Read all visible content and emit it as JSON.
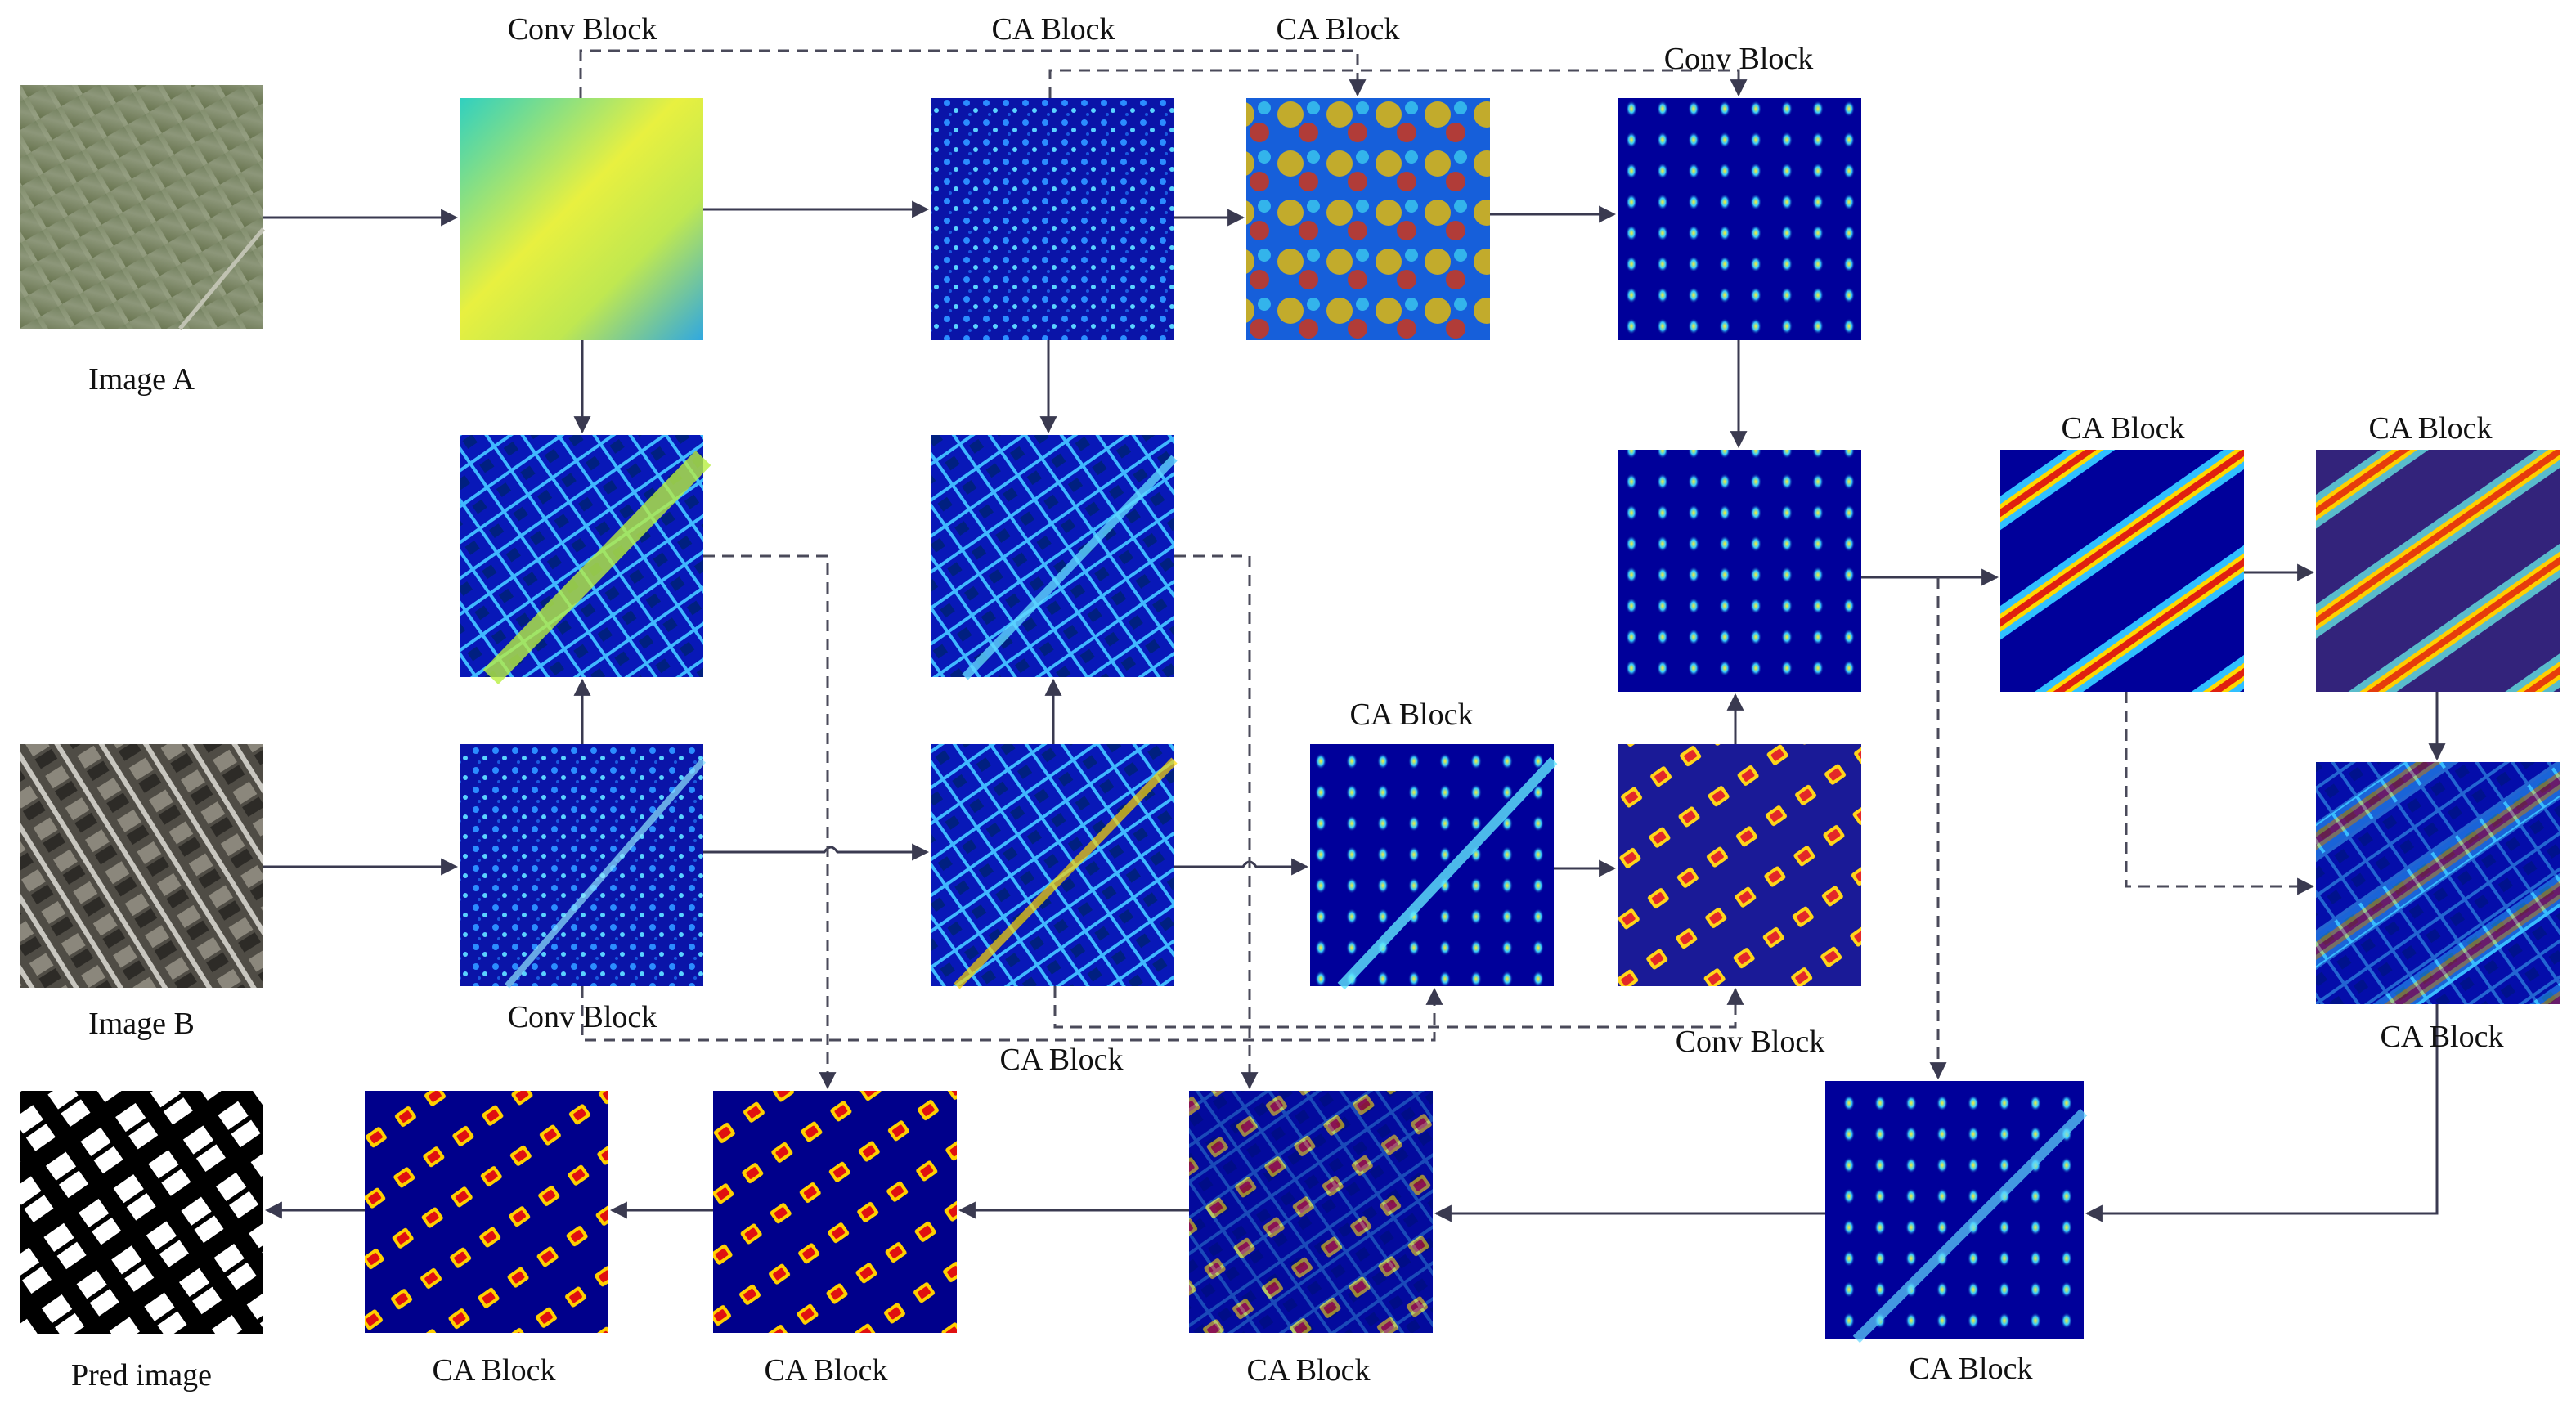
{
  "labels": {
    "image_a": "Image A",
    "image_b": "Image B",
    "pred_image": "Pred image",
    "conv_block": "Conv Block",
    "ca_block": "CA Block"
  },
  "colors": {
    "feature_low": "#00008b",
    "feature_mid": "#1ea0ff",
    "feature_high": "#ffe000",
    "feature_peak": "#e01010",
    "photo_a": "#7d8a68",
    "photo_b": "#55524a",
    "mask_fg": "#ffffff",
    "mask_bg": "#000000",
    "connector": "#3a3a50"
  }
}
